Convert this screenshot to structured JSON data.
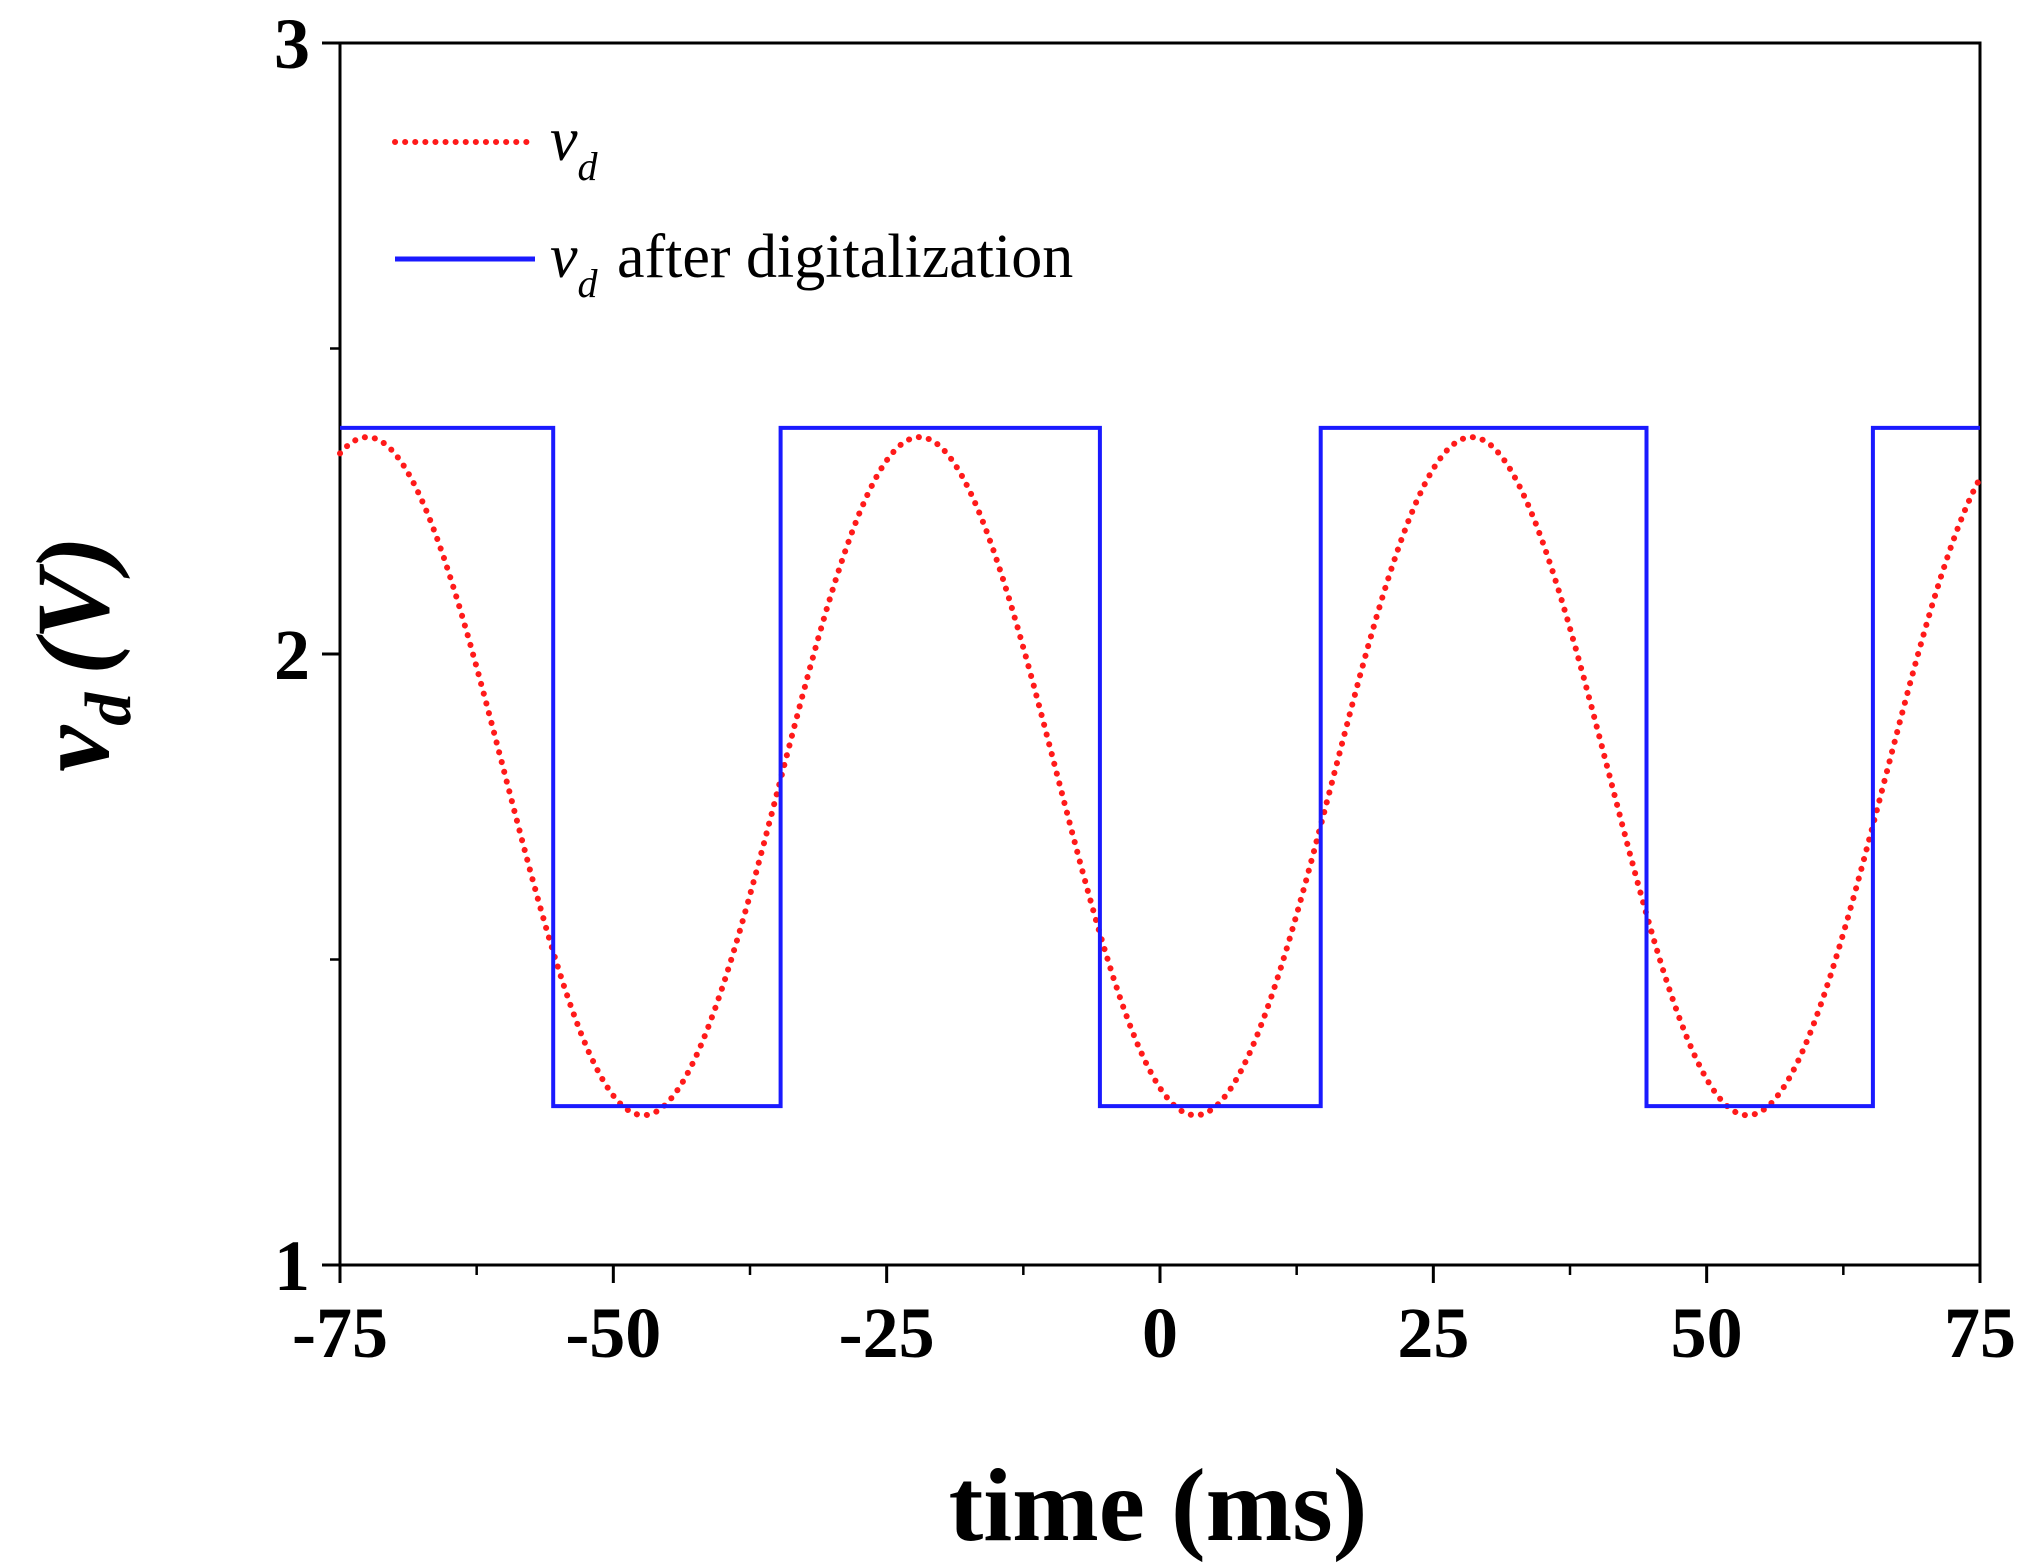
{
  "chart_data": {
    "type": "line",
    "x_ticks": [
      -75,
      -50,
      -25,
      0,
      25,
      50,
      75
    ],
    "x_tick_labels": [
      "-75",
      "-50",
      "-25",
      "0",
      "25",
      "50",
      "75"
    ],
    "y_ticks": [
      1,
      2,
      3
    ],
    "y_tick_labels": [
      "1",
      "2",
      "3"
    ],
    "y_minor_ticks": [
      1.5,
      2.5
    ],
    "xlim": [
      -75,
      75
    ],
    "ylim": [
      1,
      3
    ],
    "xlabel": "time (ms)",
    "ylabel": {
      "symbol": "v",
      "subscript": "d",
      "unit": "(V)"
    },
    "grid": false,
    "legend_position": "top-left",
    "series": [
      {
        "name": "v_d",
        "legend_symbol": "v",
        "legend_subscript": "d",
        "legend_suffix": "",
        "style": "dotted",
        "color": "#ff1a1a",
        "model": {
          "offset": 1.8,
          "amplitude": 0.555,
          "period_ms": 50.5,
          "peak_time_ms": -22
        }
      },
      {
        "name": "v_d after digitalization",
        "legend_symbol": "v",
        "legend_subscript": "d",
        "legend_suffix": "after digitalization",
        "style": "solid",
        "color": "#1a1aff",
        "x": [
          -75,
          -55.5,
          -55.5,
          -34.7,
          -34.7,
          -5.5,
          -5.5,
          14.7,
          14.7,
          44.5,
          44.5,
          65.2,
          65.2,
          75
        ],
        "y": [
          2.37,
          2.37,
          1.26,
          1.26,
          2.37,
          2.37,
          1.26,
          1.26,
          2.37,
          2.37,
          1.26,
          1.26,
          2.37,
          2.37
        ]
      }
    ]
  }
}
